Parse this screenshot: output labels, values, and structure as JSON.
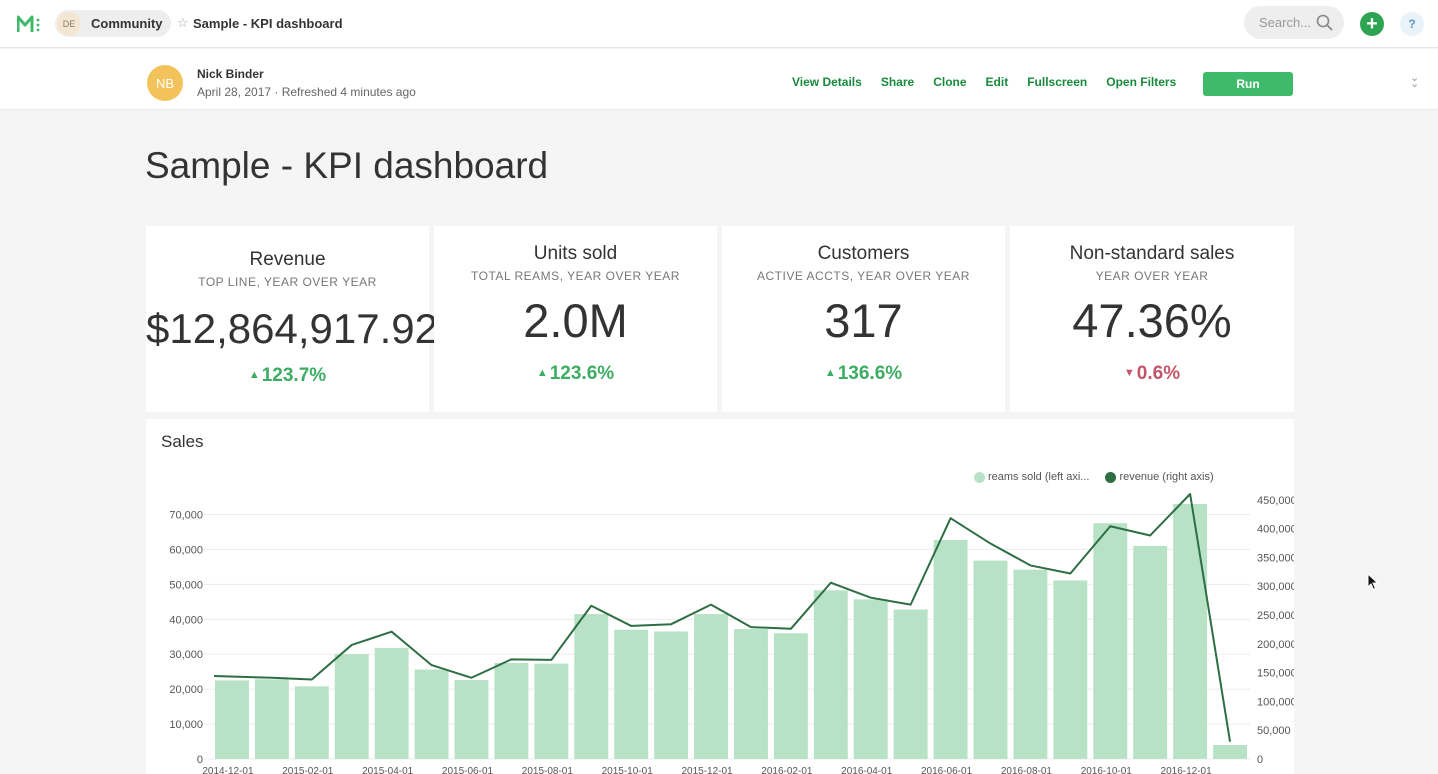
{
  "nav": {
    "crumb_avatar": "DE",
    "crumb_label": "Community",
    "report_name": "Sample - KPI dashboard",
    "search_placeholder": "Search...",
    "add_label": "+",
    "help_label": "?"
  },
  "header": {
    "author_initials": "NB",
    "author_name": "Nick Binder",
    "meta": "April 28, 2017 · Refreshed 4 minutes ago",
    "actions": [
      "View Details",
      "Share",
      "Clone",
      "Edit",
      "Fullscreen",
      "Open Filters"
    ],
    "run_label": "Run"
  },
  "page_title": "Sample - KPI dashboard",
  "kpis": [
    {
      "title": "Revenue",
      "subtitle": "TOP LINE, YEAR OVER YEAR",
      "value": "$12,864,917.92",
      "delta": "123.7%",
      "direction": "up"
    },
    {
      "title": "Units sold",
      "subtitle": "TOTAL REAMS, YEAR OVER YEAR",
      "value": "2.0M",
      "delta": "123.6%",
      "direction": "up"
    },
    {
      "title": "Customers",
      "subtitle": "ACTIVE ACCTS, YEAR OVER YEAR",
      "value": "317",
      "delta": "136.6%",
      "direction": "up"
    },
    {
      "title": "Non-standard sales",
      "subtitle": "YEAR OVER YEAR",
      "value": "47.36%",
      "delta": "0.6%",
      "direction": "down"
    }
  ],
  "colors": {
    "bar": "#b8e2c6",
    "line": "#2e6e45",
    "accent": "#198a3c",
    "up": "#3cad62",
    "down": "#c3556a"
  },
  "chart_data": {
    "type": "bar",
    "title": "Sales",
    "legend_position": "top-right",
    "grid": true,
    "x_tick_labels": [
      "2014-12-01",
      "2015-02-01",
      "2015-04-01",
      "2015-06-01",
      "2015-08-01",
      "2015-10-01",
      "2015-12-01",
      "2016-02-01",
      "2016-04-01",
      "2016-06-01",
      "2016-08-01",
      "2016-10-01",
      "2016-12-01"
    ],
    "y_ticks": [
      "0",
      "10,000",
      "20,000",
      "30,000",
      "40,000",
      "50,000",
      "60,000",
      "70,000"
    ],
    "y2_ticks": [
      "0",
      "50,000",
      "100,000",
      "150,000",
      "200,000",
      "250,000",
      "300,000",
      "350,000",
      "400,000",
      "450,000"
    ],
    "ylim": [
      0,
      73000
    ],
    "y2lim": [
      0,
      460000
    ],
    "categories": [
      "2014-12-01",
      "2015-01-01",
      "2015-02-01",
      "2015-03-01",
      "2015-04-01",
      "2015-05-01",
      "2015-06-01",
      "2015-07-01",
      "2015-08-01",
      "2015-09-01",
      "2015-10-01",
      "2015-11-01",
      "2015-12-01",
      "2016-01-01",
      "2016-02-01",
      "2016-03-01",
      "2016-04-01",
      "2016-05-01",
      "2016-06-01",
      "2016-07-01",
      "2016-08-01",
      "2016-09-01",
      "2016-10-01",
      "2016-11-01",
      "2016-12-01",
      "2017-01-01"
    ],
    "series": [
      {
        "name": "reams sold (left axi...",
        "axis": "left",
        "kind": "bar",
        "values": [
          22500,
          22800,
          20800,
          30000,
          31800,
          25600,
          22600,
          27500,
          27300,
          41500,
          37000,
          36500,
          41500,
          37200,
          36000,
          48300,
          45700,
          42800,
          62700,
          56800,
          54200,
          51100,
          67500,
          61000,
          73000,
          4000
        ]
      },
      {
        "name": "revenue (right axis)",
        "axis": "right",
        "kind": "line",
        "values": [
          144000,
          141000,
          138000,
          198000,
          221000,
          163000,
          141000,
          173000,
          172000,
          266000,
          231000,
          234000,
          268000,
          229000,
          226000,
          306000,
          280000,
          268000,
          418000,
          374000,
          336000,
          322000,
          404000,
          388000,
          460000,
          30000
        ]
      }
    ]
  }
}
